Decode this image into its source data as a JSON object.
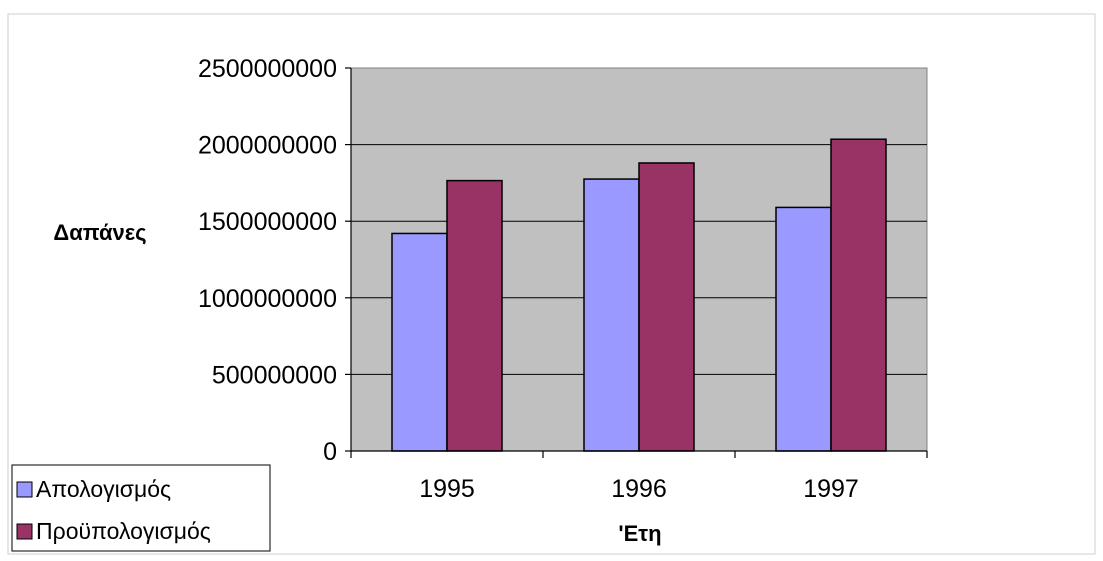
{
  "chart_data": {
    "type": "bar",
    "title": "",
    "xlabel": "'Ετη",
    "ylabel": "Δαπάνες",
    "categories": [
      "1995",
      "1996",
      "1997"
    ],
    "series": [
      {
        "name": "Απολογισμός",
        "color": "#9999ff",
        "values": [
          1420000000,
          1775000000,
          1590000000
        ]
      },
      {
        "name": "Προϋπολογισμός",
        "color": "#993366",
        "values": [
          1765000000,
          1880000000,
          2035000000
        ]
      }
    ],
    "ylim": [
      0,
      2500000000
    ],
    "yticks": [
      "0",
      "500000000",
      "1000000000",
      "1500000000",
      "2000000000",
      "2500000000"
    ],
    "grid": true,
    "plot_background": "#c0c0c0",
    "legend_position": "bottom-left"
  }
}
